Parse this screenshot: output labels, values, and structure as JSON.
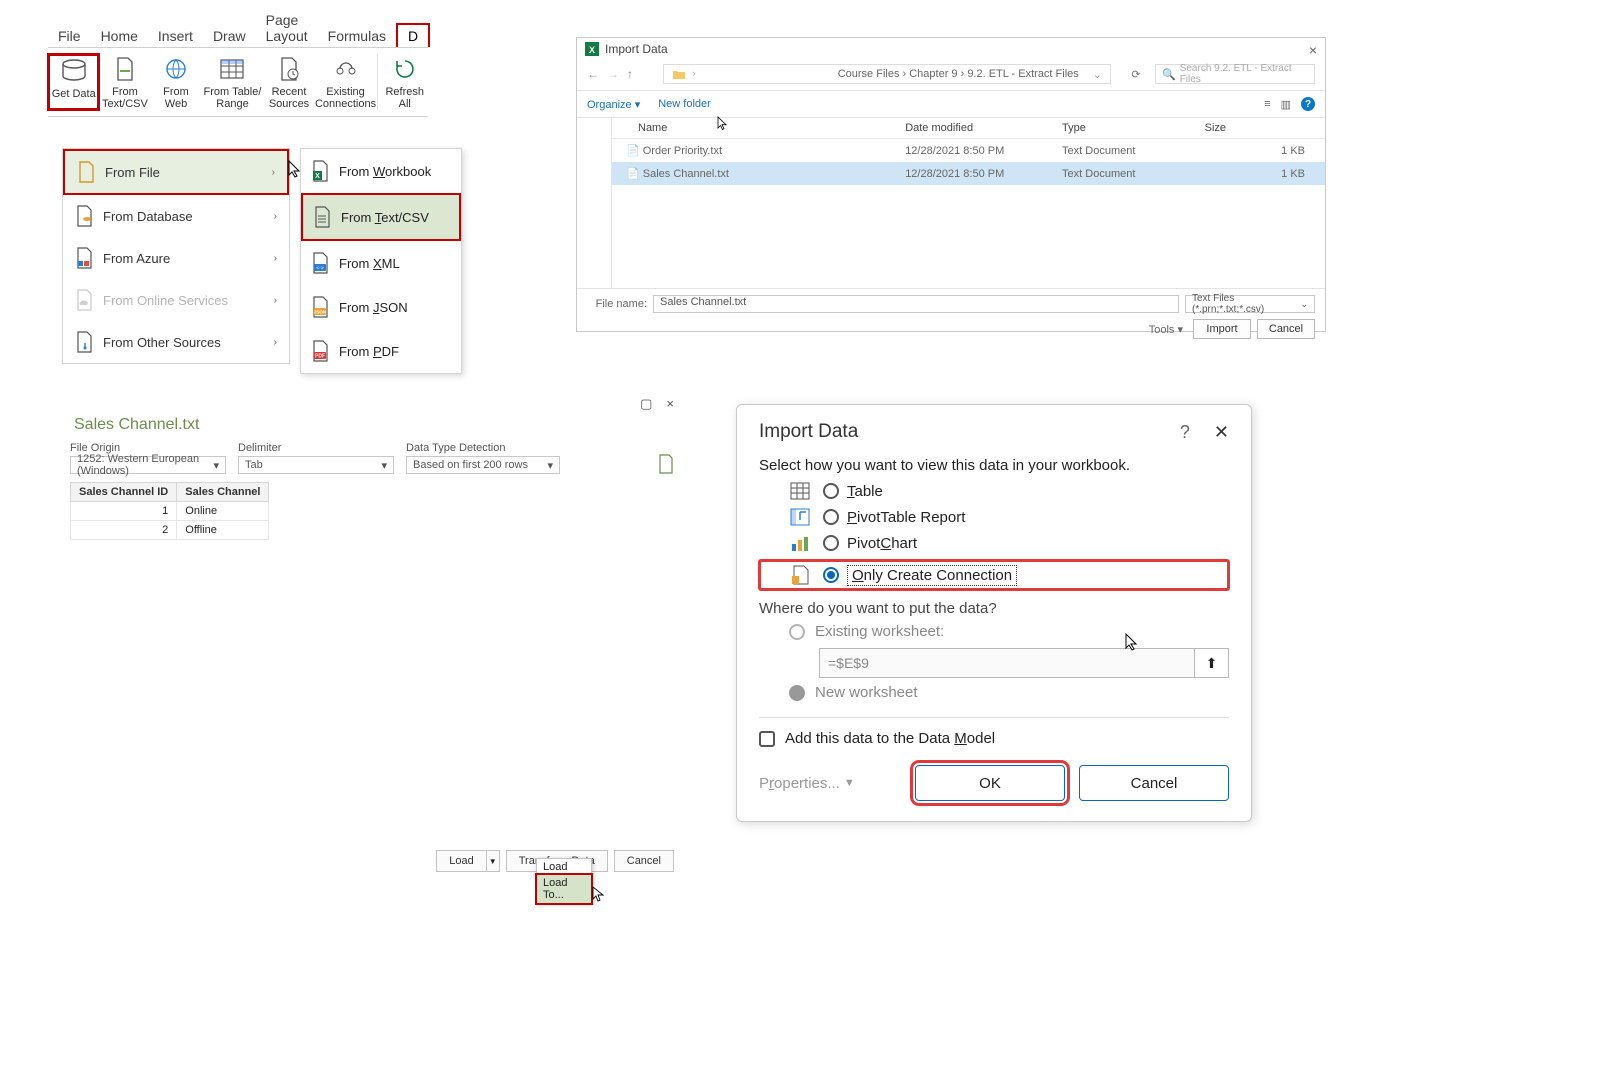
{
  "colors": {
    "highlight": "#c00000",
    "accent_blue": "#0a66c2",
    "green_title": "#6b8e4e"
  },
  "panel1": {
    "tabs": [
      "File",
      "Home",
      "Insert",
      "Draw",
      "Page Layout",
      "Formulas",
      "D"
    ],
    "active_tab_index": 6,
    "ribbon_buttons": [
      {
        "label": "Get Data",
        "sub": "▾",
        "highlighted": true
      },
      {
        "label": "From Text/CSV"
      },
      {
        "label": "From Web"
      },
      {
        "label": "From Table/ Range"
      },
      {
        "label": "Recent Sources"
      },
      {
        "label": "Existing Connections"
      },
      {
        "label": "Refresh All",
        "sub": "▾"
      }
    ],
    "menu_left": [
      {
        "label": "From File",
        "active": true
      },
      {
        "label": "From Database"
      },
      {
        "label": "From Azure"
      },
      {
        "label": "From Online Services",
        "disabled": true
      },
      {
        "label": "From Other Sources"
      }
    ],
    "menu_right": [
      {
        "label": "From Workbook"
      },
      {
        "label": "From Text/CSV",
        "active": true
      },
      {
        "label": "From XML"
      },
      {
        "label": "From JSON"
      },
      {
        "label": "From PDF"
      }
    ]
  },
  "panel2": {
    "title": "Import Data",
    "breadcrumb": "Course Files  ›  Chapter 9  ›  9.2. ETL - Extract Files",
    "search_placeholder": "Search 9.2. ETL - Extract Files",
    "toolbar_left": [
      "Organize ▾",
      "New folder"
    ],
    "view_icons": [
      "≡",
      "▥"
    ],
    "columns": [
      "Name",
      "Date modified",
      "Type",
      "Size"
    ],
    "rows": [
      {
        "name": "Order Priority.txt",
        "date": "12/28/2021 8:50 PM",
        "type": "Text Document",
        "size": "1 KB",
        "selected": false
      },
      {
        "name": "Sales Channel.txt",
        "date": "12/28/2021 8:50 PM",
        "type": "Text Document",
        "size": "1 KB",
        "selected": true
      }
    ],
    "filename_label": "File name:",
    "filename_value": "Sales Channel.txt",
    "filetype_value": "Text Files (*.prn;*.txt;*.csv)",
    "tools_label": "Tools  ▾",
    "btn_import": "Import",
    "btn_cancel": "Cancel"
  },
  "panel3": {
    "title": "Sales Channel.txt",
    "opts": {
      "file_origin": {
        "label": "File Origin",
        "value": "1252: Western European (Windows)"
      },
      "delimiter": {
        "label": "Delimiter",
        "value": "Tab"
      },
      "detection": {
        "label": "Data Type Detection",
        "value": "Based on first 200 rows"
      }
    },
    "columns": [
      "Sales Channel ID",
      "Sales Channel"
    ],
    "rows": [
      [
        "1",
        "Online"
      ],
      [
        "2",
        "Offline"
      ]
    ],
    "btn_load": "Load",
    "btn_transform": "Transform Data",
    "btn_cancel": "Cancel",
    "load_menu": [
      "Load",
      "Load To..."
    ]
  },
  "panel4": {
    "title": "Import Data",
    "subtitle": "Select how you want to view this data in your workbook.",
    "options": [
      {
        "label": "Table",
        "key": "T"
      },
      {
        "label": "PivotTable Report",
        "key": "P"
      },
      {
        "label": "PivotChart",
        "key": "C"
      },
      {
        "label": "Only Create Connection",
        "key": "O",
        "selected": true
      }
    ],
    "where_label": "Where do you want to put the data?",
    "existing_label": "Existing worksheet:",
    "range_value": "=$E$9",
    "new_label": "New worksheet",
    "add_model_label": "Add this data to the Data Model",
    "properties_label": "Properties...",
    "btn_ok": "OK",
    "btn_cancel": "Cancel"
  }
}
